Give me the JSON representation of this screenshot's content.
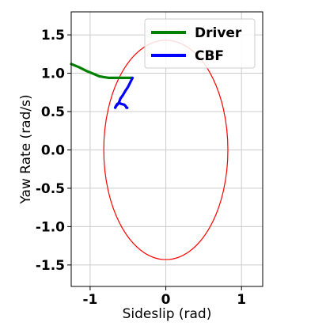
{
  "chart_data": {
    "type": "line",
    "xlabel": "Sideslip (rad)",
    "ylabel": "Yaw Rate (rad/s)",
    "xlim": [
      -1.25,
      1.28
    ],
    "ylim": [
      -1.78,
      1.8
    ],
    "x_ticks": [
      -1,
      0,
      1
    ],
    "x_tick_labels": [
      "-1",
      "0",
      "1"
    ],
    "y_ticks": [
      1.5,
      1.0,
      0.5,
      0.0,
      -0.5,
      -1.0,
      -1.5
    ],
    "y_tick_labels": [
      "1.5",
      "1.0",
      "0.5",
      "0.0",
      "-0.5",
      "-1.0",
      "-1.5"
    ],
    "grid": true,
    "legend_position": "top-right",
    "colors": {
      "driver": "#008000",
      "cbf": "#0000ff",
      "boundary": "#ff0000",
      "grid": "#cccccc"
    },
    "series": [
      {
        "name": "Driver",
        "color": "#008000",
        "x": [
          -1.25,
          -1.15,
          -1.05,
          -0.95,
          -0.88,
          -0.82,
          -0.75,
          -0.6,
          -0.45
        ],
        "y": [
          1.12,
          1.08,
          1.03,
          0.99,
          0.96,
          0.95,
          0.94,
          0.94,
          0.94
        ]
      },
      {
        "name": "CBF",
        "color": "#0000ff",
        "x": [
          -0.44,
          -0.47,
          -0.5,
          -0.54,
          -0.57,
          -0.6,
          -0.61,
          -0.62,
          -0.63,
          -0.65,
          -0.67,
          -0.66,
          -0.64,
          -0.61,
          -0.59,
          -0.55,
          -0.53,
          -0.52,
          -0.51
        ],
        "y": [
          0.94,
          0.88,
          0.82,
          0.76,
          0.71,
          0.67,
          0.64,
          0.62,
          0.6,
          0.58,
          0.55,
          0.57,
          0.6,
          0.61,
          0.6,
          0.59,
          0.57,
          0.55,
          0.55
        ]
      }
    ],
    "boundary_ellipse": {
      "center": [
        0.0,
        0.0
      ],
      "semi_axis_x": 0.82,
      "semi_axis_y": 1.43
    }
  }
}
